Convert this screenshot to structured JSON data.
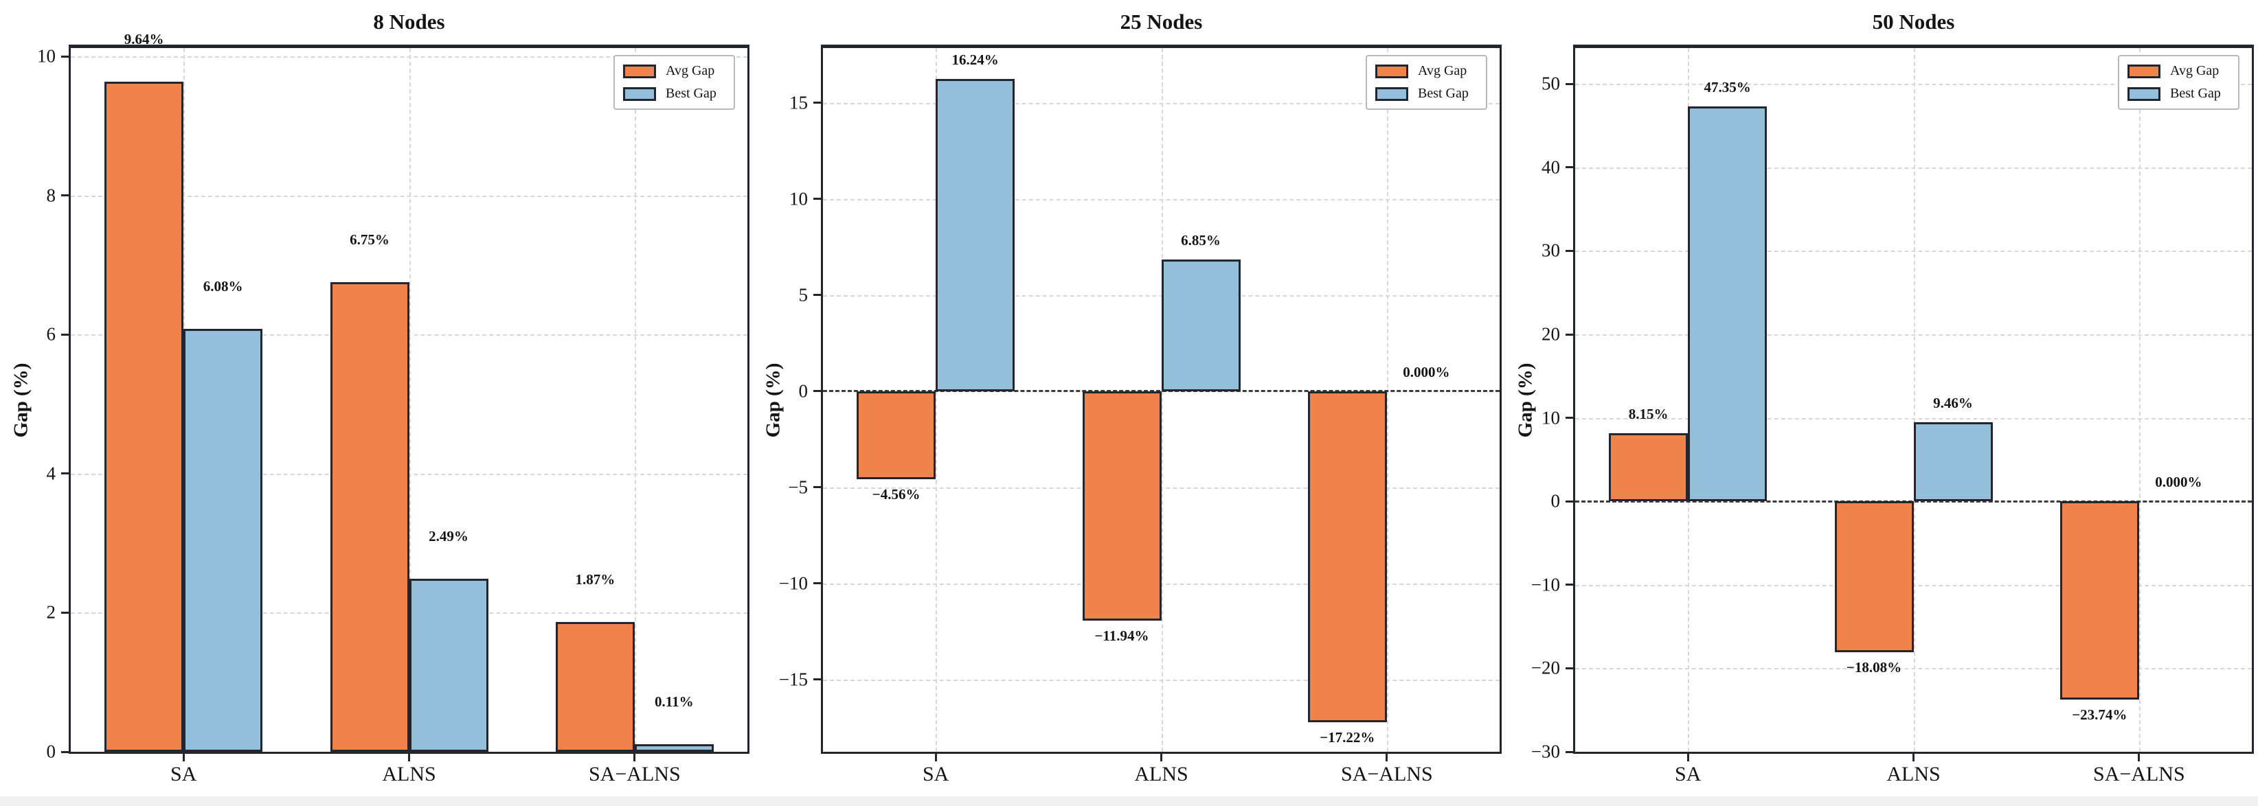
{
  "figure": {
    "ylabel": "Gap (%)",
    "colors": {
      "avg_fill": "#F0824C",
      "best_fill": "#94BFDB",
      "bar_edge": "#23262F",
      "grid": "#D8D8D8",
      "zero_line": "#3C3C3C",
      "spine": "#24262E",
      "text": "#141414",
      "legend_border": "#B9B9B9"
    }
  },
  "legend": {
    "items": [
      {
        "name": "avg-gap",
        "label": "Avg Gap",
        "color": "#F0824C"
      },
      {
        "name": "best-gap",
        "label": "Best Gap",
        "color": "#94BFDB"
      }
    ]
  },
  "chart_data": [
    {
      "type": "bar",
      "title": "8 Nodes",
      "ylabel": "Gap (%)",
      "categories": [
        "SA",
        "ALNS",
        "SA−ALNS"
      ],
      "series": [
        {
          "name": "Avg Gap",
          "values": [
            9.64,
            6.75,
            1.87
          ],
          "labels": [
            "9.64%",
            "6.75%",
            "1.87%"
          ]
        },
        {
          "name": "Best Gap",
          "values": [
            6.08,
            2.49,
            0.11
          ],
          "labels": [
            "6.08%",
            "2.49%",
            "0.11%"
          ]
        }
      ],
      "ylim": [
        0,
        10.12
      ],
      "yticks": [
        0,
        2,
        4,
        6,
        8,
        10
      ],
      "grid": true,
      "zero_line": false,
      "legend_position": "upper right"
    },
    {
      "type": "bar",
      "title": "25 Nodes",
      "ylabel": "Gap (%)",
      "categories": [
        "SA",
        "ALNS",
        "SA−ALNS"
      ],
      "series": [
        {
          "name": "Avg Gap",
          "values": [
            -4.56,
            -11.94,
            -17.22
          ],
          "labels": [
            "−4.56%",
            "−11.94%",
            "−17.22%"
          ]
        },
        {
          "name": "Best Gap",
          "values": [
            16.24,
            6.85,
            0.0
          ],
          "labels": [
            "16.24%",
            "6.85%",
            "0.000%"
          ]
        }
      ],
      "ylim": [
        -18.75,
        17.85
      ],
      "yticks": [
        -15,
        -10,
        -5,
        0,
        5,
        10,
        15
      ],
      "grid": true,
      "zero_line": true,
      "legend_position": "upper right"
    },
    {
      "type": "bar",
      "title": "50 Nodes",
      "ylabel": "Gap (%)",
      "categories": [
        "SA",
        "ALNS",
        "SA−ALNS"
      ],
      "series": [
        {
          "name": "Avg Gap",
          "values": [
            8.15,
            -18.08,
            -23.74
          ],
          "labels": [
            "8.15%",
            "−18.08%",
            "−23.74%"
          ]
        },
        {
          "name": "Best Gap",
          "values": [
            47.35,
            9.46,
            0.0
          ],
          "labels": [
            "47.35%",
            "9.46%",
            "0.000%"
          ]
        }
      ],
      "ylim": [
        -30,
        54.3
      ],
      "yticks": [
        -30,
        -20,
        -10,
        0,
        10,
        20,
        30,
        40,
        50
      ],
      "grid": true,
      "zero_line": true,
      "legend_position": "upper right"
    }
  ]
}
